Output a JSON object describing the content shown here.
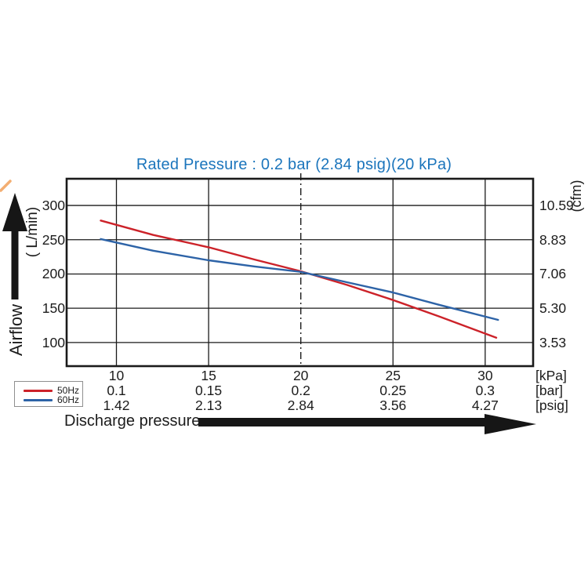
{
  "title": "Rated Pressure : 0.2 bar (2.84 psig)(20 kPa)",
  "colors": {
    "title_text": "#1b75bc",
    "series_50hz": "#cc2229",
    "series_60hz": "#2d63a7",
    "axis_ink": "#1a1a1a",
    "legend_border": "#8f8f8f"
  },
  "axes": {
    "y_left_title_word": "Airflow",
    "y_left_title_unit": "( L/min)",
    "y_right_title": "(cfm)",
    "x_title": "Discharge pressure"
  },
  "legend": {
    "items": [
      {
        "label": "50Hz"
      },
      {
        "label": "60Hz"
      }
    ]
  },
  "chart_data": {
    "type": "line",
    "title": "Rated Pressure : 0.2 bar (2.84 psig)(20 kPa)",
    "xlabel": "Discharge pressure",
    "ylabel_left": "Airflow ( L/min)",
    "ylabel_right": "(cfm)",
    "grid": true,
    "legend_position": "bottom-left",
    "x_axis": {
      "unit_labels": [
        "[kPa]",
        "[bar]",
        "[psig]"
      ],
      "ticks_kpa": [
        "10",
        "15",
        "20",
        "25",
        "30"
      ],
      "ticks_bar": [
        "0.1",
        "0.15",
        "0.2",
        "0.25",
        "0.3"
      ],
      "ticks_psig": [
        "1.42",
        "2.13",
        "2.84",
        "3.56",
        "4.27"
      ],
      "tick_values_kpa": [
        10,
        15,
        20,
        25,
        30
      ],
      "range_kpa": [
        7.3,
        32.6
      ],
      "reference_line_kpa": 20
    },
    "y_axis_left": {
      "tick_labels": [
        "300",
        "250",
        "200",
        "150",
        "100"
      ],
      "tick_values": [
        300,
        250,
        200,
        150,
        100
      ],
      "range": [
        65.5,
        339
      ]
    },
    "y_axis_right": {
      "tick_labels": [
        "10.59",
        "8.83",
        "7.06",
        "5.30",
        "3.53"
      ]
    },
    "series": [
      {
        "name": "50Hz",
        "color": "#cc2229",
        "points_kpa_lmin": [
          [
            9.15,
            278
          ],
          [
            12,
            257
          ],
          [
            15,
            239
          ],
          [
            17.5,
            221
          ],
          [
            20,
            204
          ],
          [
            22.5,
            184
          ],
          [
            25,
            162
          ],
          [
            27.5,
            138
          ],
          [
            30.6,
            107
          ]
        ]
      },
      {
        "name": "60Hz",
        "color": "#2d63a7",
        "points_kpa_lmin": [
          [
            9.15,
            251
          ],
          [
            12,
            234
          ],
          [
            15,
            220
          ],
          [
            17.5,
            211
          ],
          [
            20,
            203
          ],
          [
            22.5,
            188
          ],
          [
            25,
            173
          ],
          [
            27.5,
            155
          ],
          [
            30.7,
            133
          ]
        ]
      }
    ],
    "rated_point": {
      "kpa": 20,
      "bar": 0.2,
      "psig": 2.84,
      "lmin": 200
    }
  }
}
